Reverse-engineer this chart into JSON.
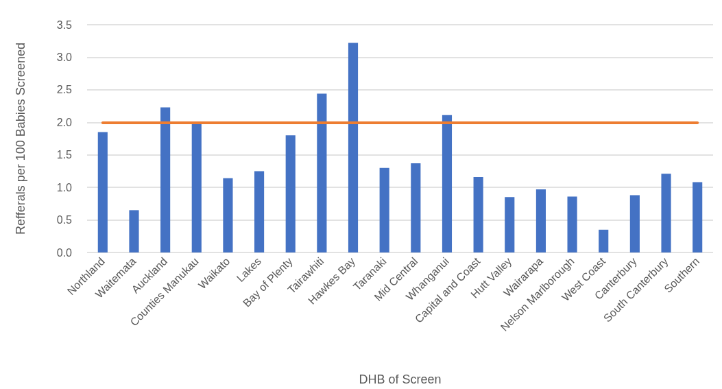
{
  "chart_data": {
    "type": "bar",
    "xlabel": "DHB of Screen",
    "ylabel": "Refferals per 100 Babies Screened",
    "categories": [
      "Northland",
      "Waitemata",
      "Auckland",
      "Counties Manukau",
      "Waikato",
      "Lakes",
      "Bay of Plenty",
      "Tairawhiti",
      "Hawkes Bay",
      "Taranaki",
      "Mid Central",
      "Whanganui",
      "Capital and Coast",
      "Hutt Valley",
      "Wairarapa",
      "Nelson Marlborough",
      "West Coast",
      "Canterbury",
      "South Canterbury",
      "Southern"
    ],
    "values": [
      1.85,
      0.65,
      2.23,
      1.98,
      1.14,
      1.25,
      1.8,
      2.44,
      3.22,
      1.3,
      1.37,
      2.11,
      1.16,
      0.85,
      0.97,
      0.86,
      0.35,
      0.88,
      1.21,
      1.08
    ],
    "color": "#4472c4",
    "ylim": [
      0,
      3.5
    ],
    "yticks": [
      {
        "value": 0,
        "label": "0.0"
      },
      {
        "value": 0.5,
        "label": "0.5"
      },
      {
        "value": 1,
        "label": "1.0"
      },
      {
        "value": 1.5,
        "label": "1.5"
      },
      {
        "value": 2,
        "label": "2.0"
      },
      {
        "value": 2.5,
        "label": "2.5"
      },
      {
        "value": 3,
        "label": "3.0"
      },
      {
        "value": 3.5,
        "label": "3.5"
      }
    ],
    "ref_lines": [
      {
        "axis": "y",
        "value": 2,
        "color": "#ed7d31",
        "line_style": "solid"
      }
    ],
    "grid": "y"
  }
}
